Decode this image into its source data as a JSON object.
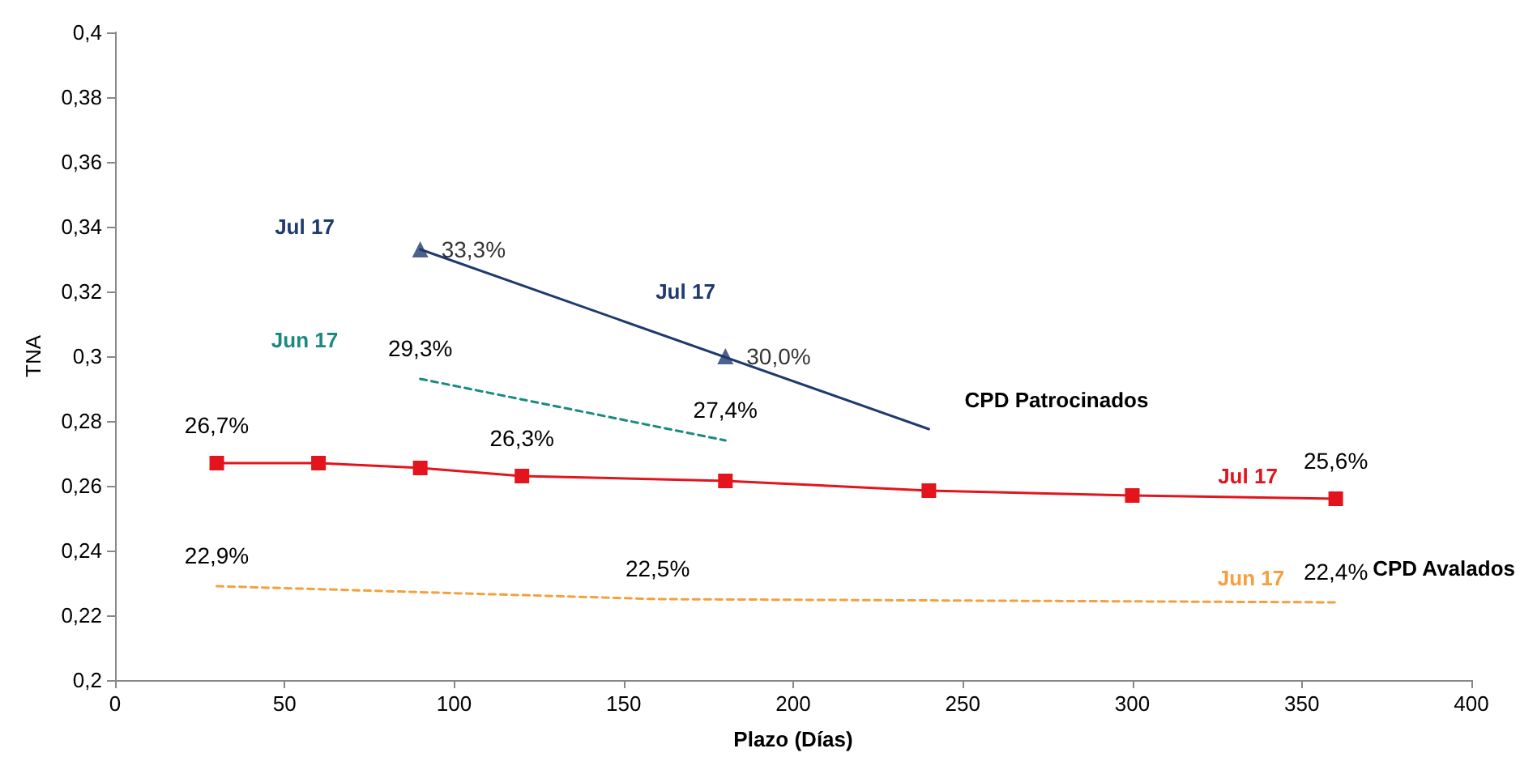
{
  "chart_data": {
    "type": "line",
    "xlabel": "Plazo (Días)",
    "ylabel": "TNA",
    "xlim": [
      0,
      400
    ],
    "xticks": [
      0,
      50,
      100,
      150,
      200,
      250,
      300,
      350,
      400
    ],
    "ylim": [
      0.2,
      0.4
    ],
    "yticks": [
      {
        "value": 0.2,
        "label": "0,2"
      },
      {
        "value": 0.22,
        "label": "0,22"
      },
      {
        "value": 0.24,
        "label": "0,24"
      },
      {
        "value": 0.26,
        "label": "0,26"
      },
      {
        "value": 0.28,
        "label": "0,28"
      },
      {
        "value": 0.3,
        "label": "0,3"
      },
      {
        "value": 0.32,
        "label": "0,32"
      },
      {
        "value": 0.34,
        "label": "0,34"
      },
      {
        "value": 0.36,
        "label": "0,36"
      },
      {
        "value": 0.38,
        "label": "0,38"
      },
      {
        "value": 0.4,
        "label": "0,4"
      }
    ],
    "grid": false,
    "legend": false,
    "series": [
      {
        "name": "Jul 17",
        "type": "scatter",
        "marker": "triangle",
        "color": "#1f3a6e",
        "x": [
          90,
          180
        ],
        "values": [
          0.333,
          0.3
        ],
        "value_labels": [
          "33,3%",
          "30,0%"
        ]
      },
      {
        "type": "line",
        "marker": "none",
        "line_style": "solid",
        "color": "#1f3a6e",
        "x": [
          90,
          240
        ],
        "values": [
          0.333,
          0.2775
        ]
      },
      {
        "name": "Jun 17",
        "marker": "none",
        "line_style": "dashed",
        "color": "#1a8a80",
        "x": [
          90,
          180
        ],
        "values": [
          0.293,
          0.274
        ],
        "value_labels": [
          "29,3%",
          "27,4%"
        ]
      },
      {
        "name": "Jul 17",
        "marker": "square",
        "line_style": "solid",
        "color": "#e3141b",
        "x": [
          30,
          60,
          90,
          120,
          180,
          240,
          300,
          360
        ],
        "values": [
          0.267,
          0.267,
          0.2655,
          0.263,
          0.2615,
          0.2585,
          0.257,
          0.256
        ],
        "value_labels": [
          "26,7%",
          null,
          null,
          "26,3%",
          null,
          null,
          null,
          "25,6%"
        ]
      },
      {
        "name": "Jun 17",
        "marker": "none",
        "line_style": "dashed",
        "color": "#f5a03c",
        "x": [
          30,
          160,
          360
        ],
        "values": [
          0.229,
          0.225,
          0.224
        ],
        "value_labels": [
          "22,9%",
          "22,5%",
          "22,4%"
        ]
      }
    ],
    "annotations": [
      "Jul 17",
      "CPD Patrocinados",
      "CPD Avalados"
    ]
  }
}
